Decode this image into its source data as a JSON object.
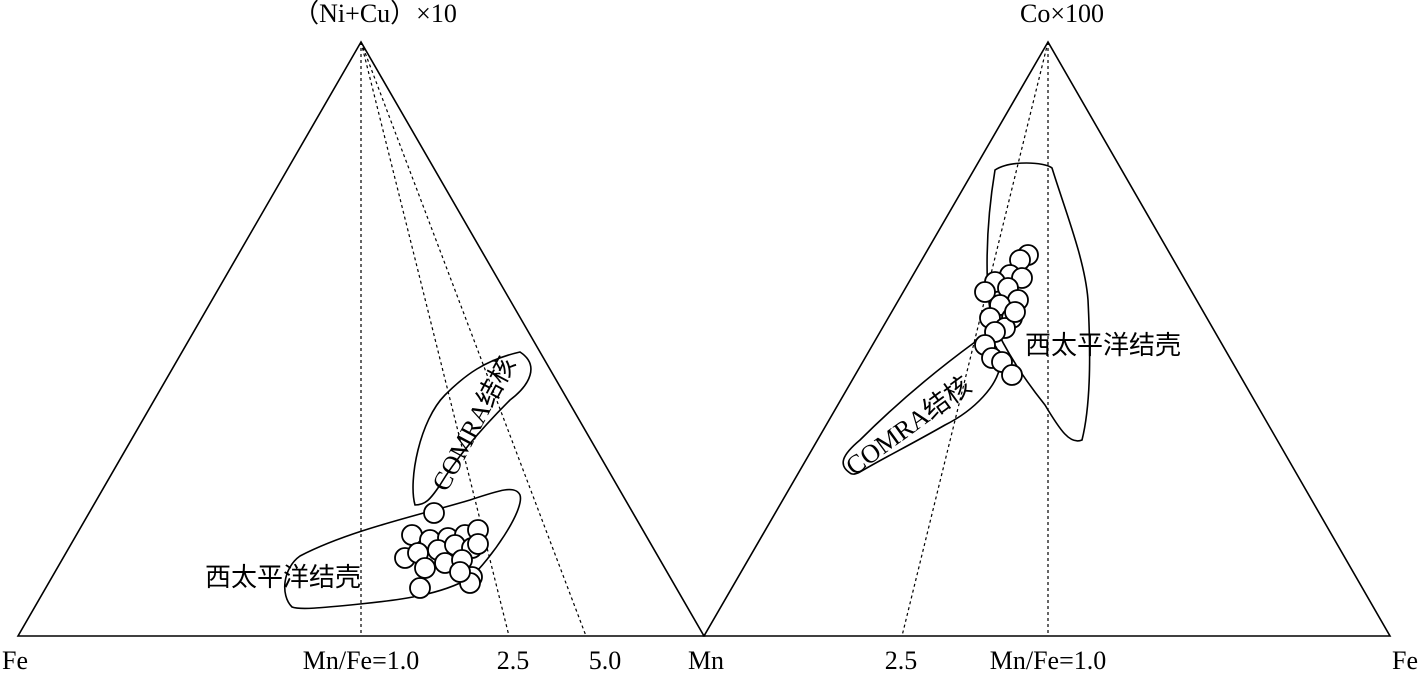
{
  "left": {
    "apex_label": "（Ni+Cu）×10",
    "left_label": "Fe",
    "right_label": "Mn",
    "ratio_labels": [
      "Mn/Fe=1.0",
      "2.5",
      "5.0"
    ],
    "regions": [
      "COMRA结核",
      "西太平洋结壳"
    ]
  },
  "right": {
    "apex_label": "Co×100",
    "right_label": "Fe",
    "ratio_labels": [
      "2.5",
      "Mn/Fe=1.0"
    ],
    "regions": [
      "COMRA结核",
      "西太平洋结壳"
    ]
  }
}
